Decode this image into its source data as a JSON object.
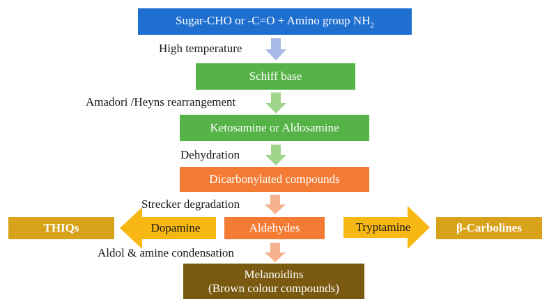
{
  "colors": {
    "blue": "#1f6fd1",
    "green": "#55b347",
    "orange": "#f47b34",
    "gold": "#d9a21b",
    "brown": "#7a5a10",
    "arrow_blue": "#a7b9e4",
    "arrow_green": "#9fd48a",
    "arrow_orange": "#f6b18c"
  },
  "boxes": {
    "sugar_main": "Sugar-CHO or -C=O + Amino group NH",
    "sugar_sub": "2",
    "schiff": "Schiff base",
    "ketosamine": "Ketosamine or Aldosamine",
    "dicarbonyl": "Dicarbonylated compounds",
    "aldehydes": "Aldehydes",
    "thiqs": "THIQs",
    "carbolines": "β-Carbolines",
    "melanoidins_line1": "Melanoidins",
    "melanoidins_line2": "(Brown colour compounds)"
  },
  "steps": {
    "high_temp": "High temperature",
    "amadori": "Amadori /Heyns rearrangement",
    "dehydration": "Dehydration",
    "strecker": "Strecker degradation",
    "aldol": "Aldol & amine condensation"
  },
  "side_arrows": {
    "dopamine": "Dopamine",
    "tryptamine": "Tryptamine"
  }
}
